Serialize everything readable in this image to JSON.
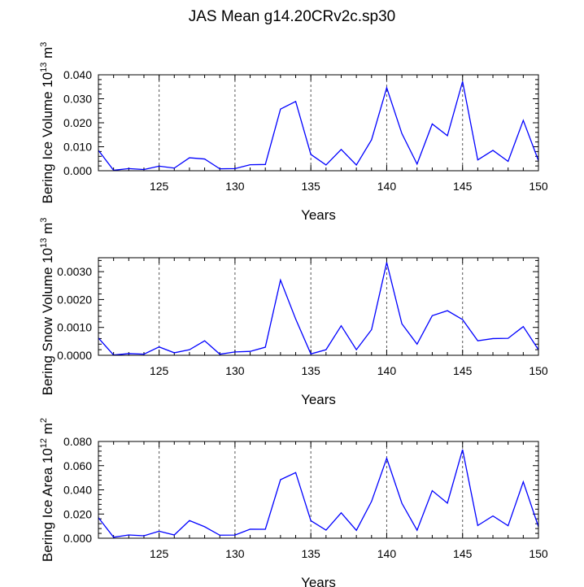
{
  "title": "JAS Mean g14.20CRv2c.sp30",
  "chart_data": [
    {
      "type": "line",
      "title": "JAS Mean g14.20CRv2c.sp30",
      "xlabel": "Years",
      "ylabel_main": "Bering Ice Volume 10",
      "ylabel_exp": "13",
      "ylabel_unit": "m",
      "ylabel_unit_exp": "3",
      "xlim": [
        121,
        150
      ],
      "ylim": [
        0,
        0.04
      ],
      "xticks": [
        125,
        130,
        135,
        140,
        145,
        150
      ],
      "xtick_labels": [
        "125",
        "130",
        "135",
        "140",
        "145",
        "150"
      ],
      "yticks": [
        0,
        0.01,
        0.02,
        0.03,
        0.04
      ],
      "ytick_labels": [
        "0.000",
        "0.010",
        "0.020",
        "0.030",
        "0.040"
      ],
      "gridlines_x": [
        125,
        130,
        135,
        140,
        145
      ],
      "line_color": "#0000ff",
      "x": [
        121,
        122,
        123,
        124,
        125,
        126,
        127,
        128,
        129,
        130,
        131,
        132,
        133,
        134,
        135,
        136,
        137,
        138,
        139,
        140,
        141,
        142,
        143,
        144,
        145,
        146,
        147,
        148,
        149,
        150
      ],
      "values": [
        0.0085,
        0.0002,
        0.0009,
        0.0005,
        0.0019,
        0.0011,
        0.0054,
        0.0049,
        0.0008,
        0.0009,
        0.0025,
        0.0026,
        0.0257,
        0.0289,
        0.0068,
        0.0024,
        0.0089,
        0.0024,
        0.0129,
        0.0346,
        0.0155,
        0.0028,
        0.0195,
        0.0146,
        0.0372,
        0.0045,
        0.0085,
        0.0039,
        0.021,
        0.0042
      ]
    },
    {
      "type": "line",
      "xlabel": "Years",
      "ylabel_main": "Bering Snow Volume 10",
      "ylabel_exp": "13",
      "ylabel_unit": "m",
      "ylabel_unit_exp": "3",
      "xlim": [
        121,
        150
      ],
      "ylim": [
        0,
        0.0035
      ],
      "xticks": [
        125,
        130,
        135,
        140,
        145,
        150
      ],
      "xtick_labels": [
        "125",
        "130",
        "135",
        "140",
        "145",
        "150"
      ],
      "yticks": [
        0,
        0.001,
        0.002,
        0.003
      ],
      "ytick_labels": [
        "0.0000",
        "0.0010",
        "0.0020",
        "0.0030"
      ],
      "gridlines_x": [
        125,
        130,
        135,
        140,
        145
      ],
      "line_color": "#0000ff",
      "x": [
        121,
        122,
        123,
        124,
        125,
        126,
        127,
        128,
        129,
        130,
        131,
        132,
        133,
        134,
        135,
        136,
        137,
        138,
        139,
        140,
        141,
        142,
        143,
        144,
        145,
        146,
        147,
        148,
        149,
        150
      ],
      "values": [
        0.00062,
        1e-05,
        6e-05,
        4e-05,
        0.0003,
        9e-05,
        0.0002,
        0.00052,
        4e-05,
        0.00012,
        0.00014,
        0.00029,
        0.0027,
        0.0013,
        5e-05,
        0.0002,
        0.00106,
        0.0002,
        0.00092,
        0.00333,
        0.00113,
        0.0004,
        0.00142,
        0.0016,
        0.00128,
        0.00052,
        0.0006,
        0.00061,
        0.00103,
        0.0002
      ]
    },
    {
      "type": "line",
      "xlabel": "Years",
      "ylabel_main": "Bering Ice Area 10",
      "ylabel_exp": "12",
      "ylabel_unit": "m",
      "ylabel_unit_exp": "2",
      "xlim": [
        121,
        150
      ],
      "ylim": [
        0,
        0.08
      ],
      "xticks": [
        125,
        130,
        135,
        140,
        145,
        150
      ],
      "xtick_labels": [
        "125",
        "130",
        "135",
        "140",
        "145",
        "150"
      ],
      "yticks": [
        0,
        0.02,
        0.04,
        0.06,
        0.08
      ],
      "ytick_labels": [
        "0.000",
        "0.020",
        "0.040",
        "0.060",
        "0.080"
      ],
      "gridlines_x": [
        125,
        130,
        135,
        140,
        145
      ],
      "line_color": "#0000ff",
      "x": [
        121,
        122,
        123,
        124,
        125,
        126,
        127,
        128,
        129,
        130,
        131,
        132,
        133,
        134,
        135,
        136,
        137,
        138,
        139,
        140,
        141,
        142,
        143,
        144,
        145,
        146,
        147,
        148,
        149,
        150
      ],
      "values": [
        0.017,
        0.0008,
        0.0027,
        0.002,
        0.0058,
        0.0027,
        0.0146,
        0.0095,
        0.0025,
        0.0026,
        0.0075,
        0.0074,
        0.0484,
        0.0543,
        0.0145,
        0.0067,
        0.021,
        0.0065,
        0.0304,
        0.0661,
        0.0289,
        0.0066,
        0.0393,
        0.029,
        0.0733,
        0.0105,
        0.0184,
        0.0103,
        0.0466,
        0.0095
      ]
    }
  ]
}
